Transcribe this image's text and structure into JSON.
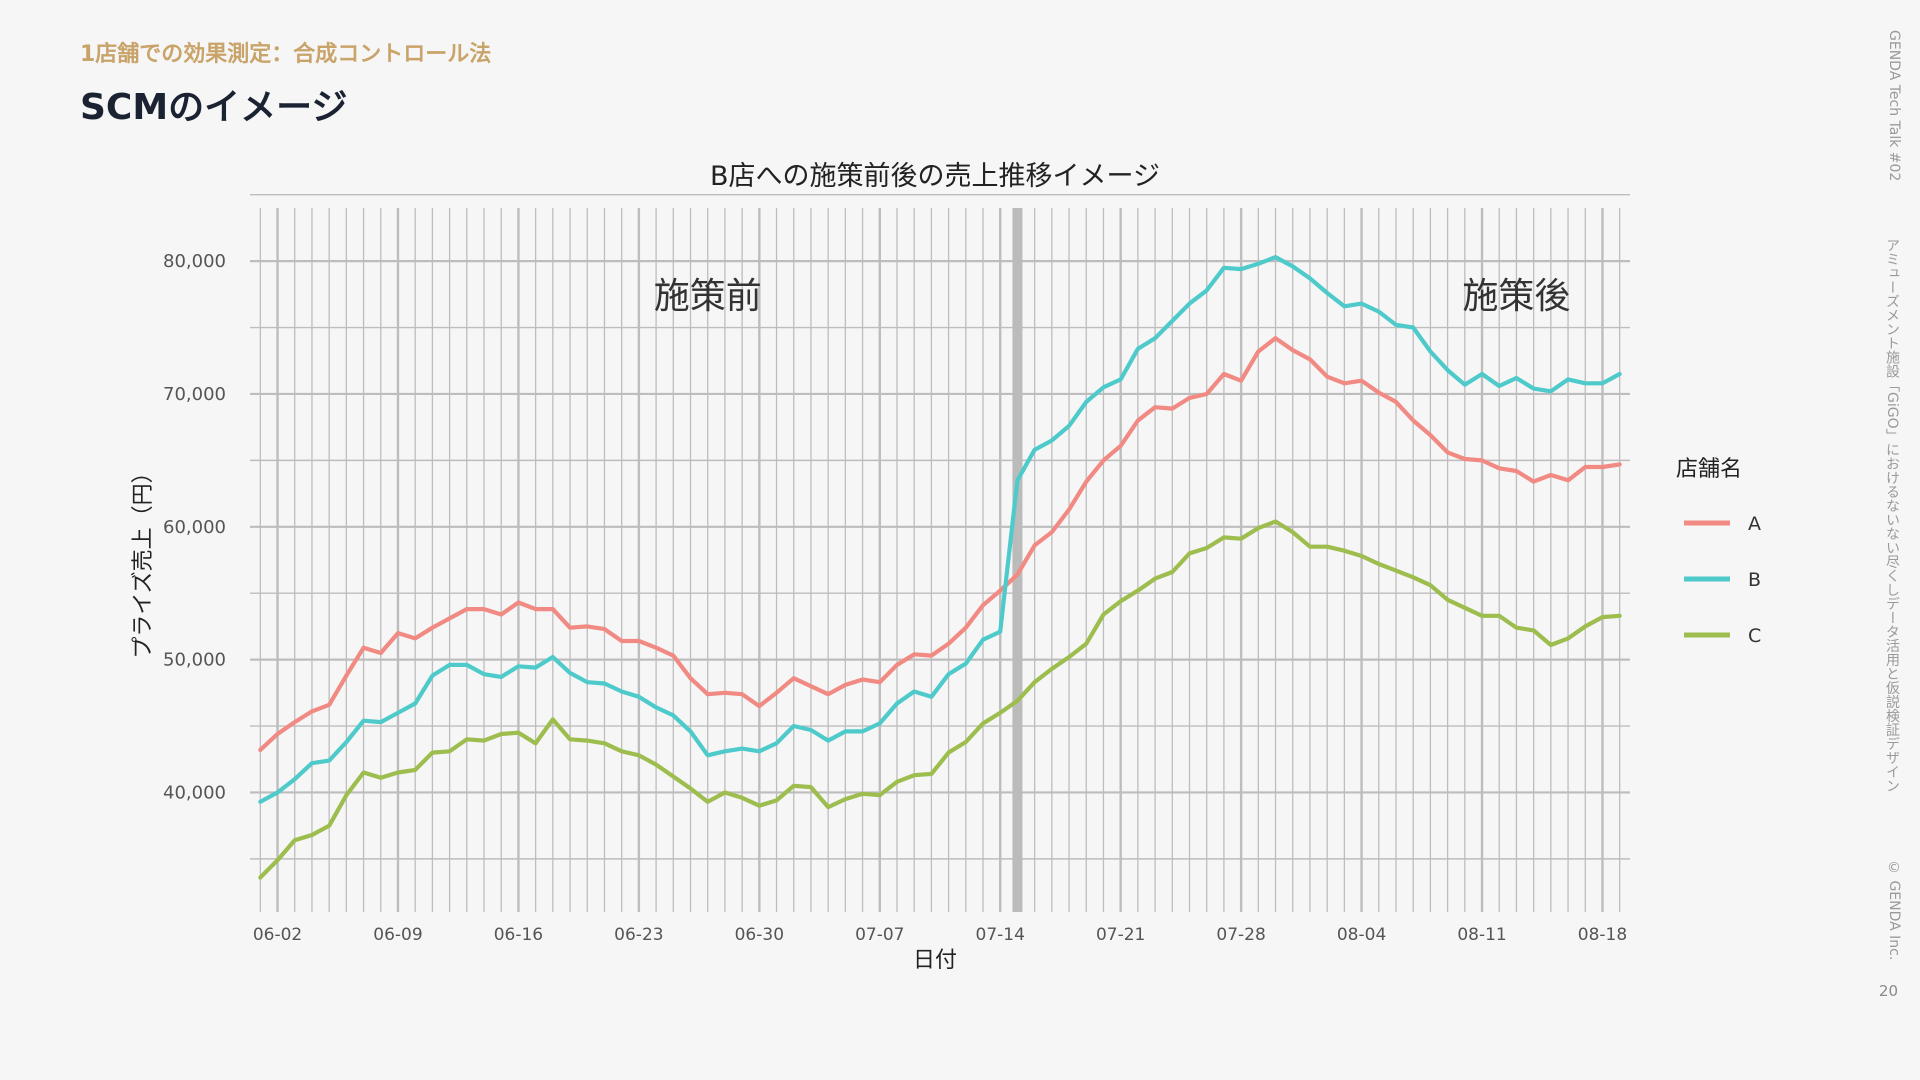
{
  "header": {
    "eyebrow": "1店舗での効果測定：合成コントロール法",
    "title": "SCMのイメージ"
  },
  "side": {
    "event": "GENDA Tech Talk #02",
    "talk_title": "アミューズメント施設「GiGO」におけるないない尽くしデータ活用と仮説検証デザイン",
    "copyright": "© GENDA Inc.",
    "page_number": "20"
  },
  "colors": {
    "A": "#f08a83",
    "B": "#4ecacb",
    "C": "#9dbd4e",
    "background": "#f6f6f6",
    "grid": "#bdbdbd",
    "intervention_band": "#bbbbbb",
    "eyebrow": "#c9a46a",
    "title": "#1b2333"
  },
  "chart_data": {
    "type": "line",
    "title": "B店への施策前後の売上推移イメージ",
    "xlabel": "日付",
    "ylabel": "プライズ売上（円）",
    "x_start": "06-01",
    "x_end": "08-19",
    "intervention": "07-15",
    "x_ticks": [
      "06-02",
      "06-09",
      "06-16",
      "06-23",
      "06-30",
      "07-07",
      "07-14",
      "07-21",
      "07-28",
      "08-04",
      "08-11",
      "08-18"
    ],
    "y_ticks": [
      40000,
      50000,
      60000,
      70000,
      80000
    ],
    "y_tick_labels": [
      "40,000",
      "50,000",
      "60,000",
      "70,000",
      "80,000"
    ],
    "ylim": [
      31000,
      84000
    ],
    "grid": true,
    "legend": {
      "title": "店舗名",
      "position": "right"
    },
    "annotations": [
      {
        "text": "施策前",
        "at_date": "06-27"
      },
      {
        "text": "施策後",
        "at_date": "08-13"
      }
    ],
    "series": [
      {
        "name": "A",
        "values": [
          43200,
          44400,
          45300,
          46100,
          46600,
          48800,
          50900,
          50500,
          52000,
          51600,
          52400,
          53100,
          53800,
          53800,
          53400,
          54300,
          53800,
          53800,
          52400,
          52500,
          52300,
          51400,
          51400,
          50900,
          50300,
          48600,
          47400,
          47500,
          47400,
          46500,
          47500,
          48600,
          48000,
          47400,
          48100,
          48500,
          48300,
          49600,
          50400,
          50300,
          51200,
          52400,
          54100,
          55200,
          56400,
          58600,
          59600,
          61300,
          63400,
          65000,
          66100,
          68000,
          69000,
          68900,
          69700,
          70000,
          71500,
          71000,
          73200,
          74200,
          73300,
          72600,
          71300,
          70800,
          71000,
          70100,
          69400,
          68000,
          66900,
          65600,
          65100,
          65000,
          64400,
          64200,
          63400,
          63900,
          63500,
          64500,
          64500,
          64700
        ]
      },
      {
        "name": "B",
        "values": [
          39300,
          40000,
          41000,
          42200,
          42400,
          43800,
          45400,
          45300,
          46000,
          46700,
          48800,
          49600,
          49600,
          48900,
          48700,
          49500,
          49400,
          50200,
          49000,
          48300,
          48200,
          47600,
          47200,
          46400,
          45800,
          44600,
          42800,
          43100,
          43300,
          43100,
          43700,
          45000,
          44700,
          43900,
          44600,
          44600,
          45200,
          46700,
          47600,
          47200,
          48900,
          49700,
          51500,
          52100,
          63500,
          65800,
          66500,
          67600,
          69400,
          70500,
          71100,
          73400,
          74200,
          75500,
          76800,
          77800,
          79500,
          79400,
          79800,
          80300,
          79600,
          78700,
          77600,
          76600,
          76800,
          76200,
          75200,
          75000,
          73200,
          71800,
          70700,
          71500,
          70600,
          71200,
          70400,
          70200,
          71100,
          70800,
          70800,
          71500
        ]
      },
      {
        "name": "C",
        "values": [
          33600,
          34900,
          36400,
          36800,
          37500,
          39800,
          41500,
          41100,
          41500,
          41700,
          43000,
          43100,
          44000,
          43900,
          44400,
          44500,
          43700,
          45500,
          44000,
          43900,
          43700,
          43100,
          42800,
          42100,
          41200,
          40300,
          39300,
          40000,
          39600,
          39000,
          39400,
          40500,
          40400,
          38900,
          39500,
          39900,
          39800,
          40800,
          41300,
          41400,
          43000,
          43800,
          45200,
          46000,
          46900,
          48300,
          49300,
          50200,
          51200,
          53400,
          54400,
          55200,
          56100,
          56600,
          58000,
          58400,
          59200,
          59100,
          59900,
          60400,
          59600,
          58500,
          58500,
          58200,
          57800,
          57200,
          56700,
          56200,
          55600,
          54500,
          53900,
          53300,
          53300,
          52400,
          52200,
          51100,
          51600,
          52500,
          53200,
          53300
        ]
      }
    ]
  }
}
